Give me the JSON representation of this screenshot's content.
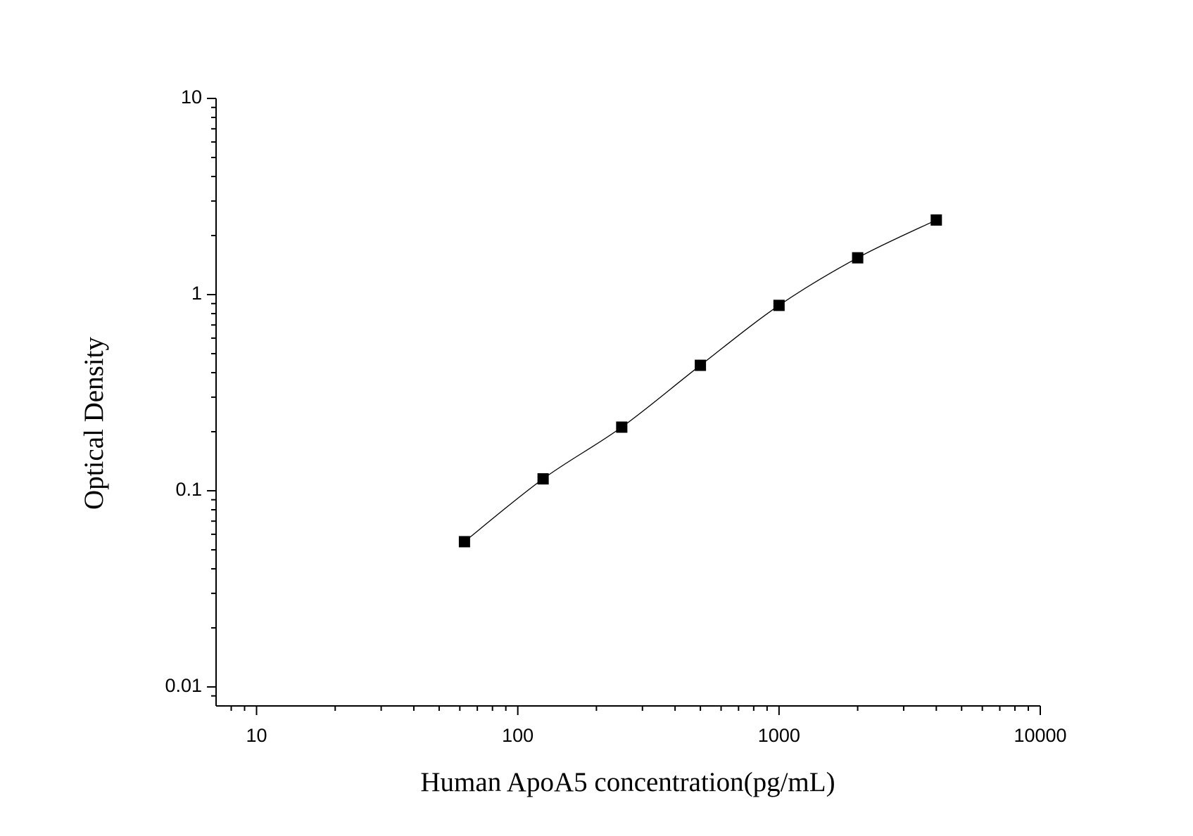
{
  "chart_data": {
    "type": "scatter",
    "x_label": "Human ApoA5 concentration(pg/mL)",
    "y_label": "Optical Density",
    "x": [
      62.5,
      125,
      250,
      500,
      1000,
      2000,
      4000
    ],
    "series": [
      {
        "color": "#000000",
        "values": [
          0.055,
          0.115,
          0.211,
          0.436,
          0.881,
          1.54,
          2.4
        ]
      }
    ],
    "xscale": "log",
    "yscale": "log",
    "xlim": [
      7,
      10000
    ],
    "xticks": [
      10,
      100,
      1000,
      10000
    ],
    "ylim": [
      0.008,
      10
    ],
    "yticks": [
      0.01,
      0.1,
      1,
      10
    ],
    "fit_line": true
  }
}
